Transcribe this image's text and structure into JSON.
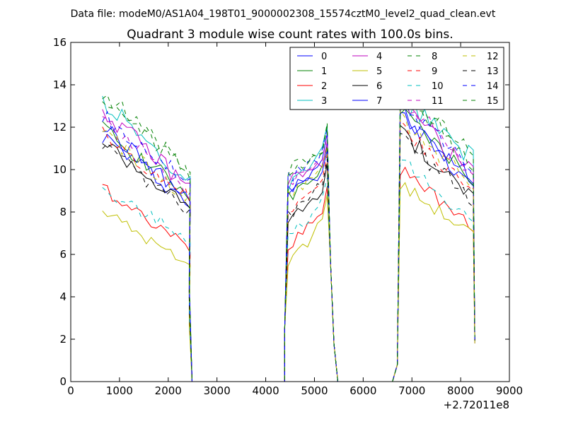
{
  "suptitle": "Data file: modeM0/AS1A04_198T01_9000002308_15574cztM0_level2_quad_clean.evt",
  "chart_data": {
    "type": "line",
    "title": "Quadrant 3 module wise count rates with 100.0s bins.",
    "xlabel": "",
    "ylabel": "",
    "x_offset_label": "+2.72011e8",
    "xlim": [
      0,
      9000
    ],
    "ylim": [
      0,
      16
    ],
    "xticks": [
      0,
      1000,
      2000,
      3000,
      4000,
      5000,
      6000,
      7000,
      8000,
      9000
    ],
    "yticks": [
      0,
      2,
      4,
      6,
      8,
      10,
      12,
      14,
      16
    ],
    "grid": false,
    "legend_position": "top-right",
    "legend_columns": 4,
    "gti_segments": [
      {
        "start": 650,
        "end": 2400,
        "edge_low": 2420,
        "edge_low_value": 0.3
      },
      {
        "start": 4460,
        "end": 5260,
        "edge_low": 4390,
        "edge_low_value": 2.5
      },
      {
        "start": 6760,
        "end": 8280,
        "edge_low": 6700,
        "edge_low_value": 0.8
      }
    ],
    "series": [
      {
        "name": "0",
        "color": "#0000ff",
        "dashed": false,
        "levels": [
          11.6,
          8.4,
          9.0,
          10.8,
          12.5,
          9.5
        ]
      },
      {
        "name": "1",
        "color": "#008000",
        "dashed": false,
        "levels": [
          11.9,
          8.8,
          8.7,
          10.2,
          12.7,
          9.6
        ]
      },
      {
        "name": "2",
        "color": "#ff0000",
        "dashed": false,
        "levels": [
          9.1,
          6.4,
          6.5,
          8.3,
          10.0,
          7.4
        ]
      },
      {
        "name": "3",
        "color": "#00bfbf",
        "dashed": false,
        "levels": [
          13.3,
          9.3,
          9.2,
          11.2,
          13.4,
          10.5
        ]
      },
      {
        "name": "4",
        "color": "#bf00bf",
        "dashed": false,
        "levels": [
          12.8,
          9.1,
          9.5,
          10.4,
          13.0,
          9.8
        ]
      },
      {
        "name": "5",
        "color": "#bfbf00",
        "dashed": false,
        "levels": [
          8.1,
          5.4,
          5.6,
          7.9,
          9.3,
          6.9
        ]
      },
      {
        "name": "6",
        "color": "#000000",
        "dashed": false,
        "levels": [
          11.4,
          8.1,
          7.6,
          9.4,
          11.8,
          8.7
        ]
      },
      {
        "name": "7",
        "color": "#0000ff",
        "dashed": false,
        "levels": [
          12.1,
          8.5,
          8.9,
          10.0,
          12.8,
          9.2
        ]
      },
      {
        "name": "8",
        "color": "#008000",
        "dashed": true,
        "levels": [
          13.8,
          9.6,
          9.7,
          11.3,
          13.9,
          10.6
        ]
      },
      {
        "name": "9",
        "color": "#ff0000",
        "dashed": true,
        "levels": [
          11.7,
          8.6,
          7.9,
          9.8,
          12.0,
          9.0
        ]
      },
      {
        "name": "10",
        "color": "#00bfbf",
        "dashed": true,
        "levels": [
          9.0,
          6.8,
          6.9,
          8.7,
          10.4,
          7.6
        ]
      },
      {
        "name": "11",
        "color": "#bf00bf",
        "dashed": true,
        "levels": [
          12.4,
          9.0,
          9.3,
          10.7,
          13.6,
          9.9
        ]
      },
      {
        "name": "12",
        "color": "#bfbf00",
        "dashed": true,
        "levels": [
          11.8,
          8.6,
          8.8,
          10.1,
          12.4,
          9.3
        ]
      },
      {
        "name": "13",
        "color": "#000000",
        "dashed": true,
        "levels": [
          11.1,
          7.9,
          7.8,
          9.6,
          11.6,
          8.5
        ]
      },
      {
        "name": "14",
        "color": "#0000ff",
        "dashed": true,
        "levels": [
          12.5,
          9.4,
          9.6,
          11.0,
          13.2,
          10.2
        ]
      },
      {
        "name": "15",
        "color": "#008000",
        "dashed": true,
        "levels": [
          13.6,
          9.8,
          10.0,
          11.1,
          13.7,
          10.4
        ]
      }
    ]
  }
}
